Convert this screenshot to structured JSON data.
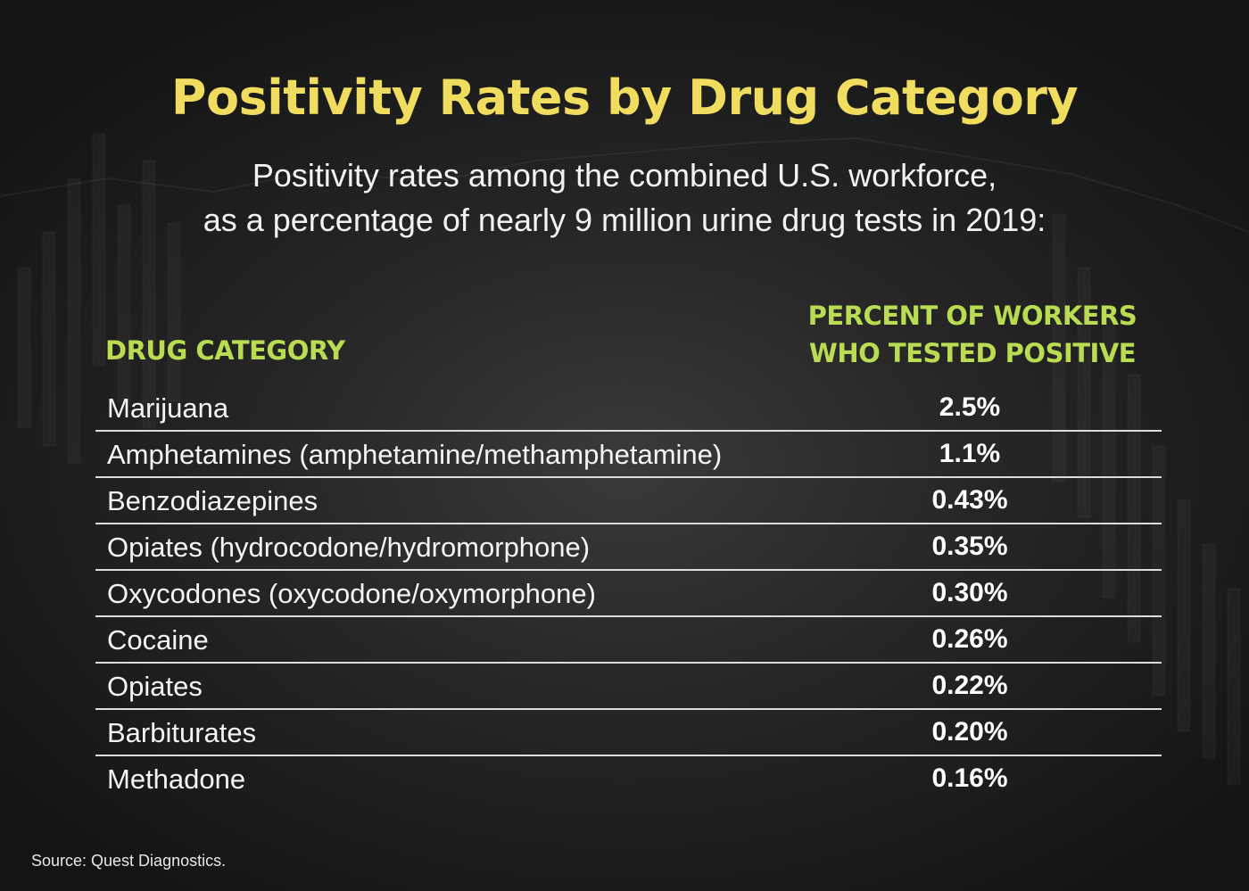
{
  "title": "Positivity Rates by Drug Category",
  "subtitle": {
    "line1": "Positivity rates among the combined U.S. workforce,",
    "line2": "as a percentage of nearly 9 million urine drug tests in 2019:"
  },
  "table": {
    "header_category": "DRUG CATEGORY",
    "header_percent_line1": "PERCENT OF WORKERS",
    "header_percent_line2": "WHO TESTED POSITIVE",
    "rows": [
      {
        "category": "Marijuana",
        "percent": "2.5%"
      },
      {
        "category": "Amphetamines (amphetamine/methamphetamine)",
        "percent": "1.1%"
      },
      {
        "category": "Benzodiazepines",
        "percent": "0.43%"
      },
      {
        "category": "Opiates (hydrocodone/hydromorphone)",
        "percent": "0.35%"
      },
      {
        "category": "Oxycodones (oxycodone/oxymorphone)",
        "percent": "0.30%"
      },
      {
        "category": "Cocaine",
        "percent": "0.26%"
      },
      {
        "category": "Opiates",
        "percent": "0.22%"
      },
      {
        "category": "Barbiturates",
        "percent": "0.20%"
      },
      {
        "category": "Methadone",
        "percent": "0.16%"
      }
    ]
  },
  "source": "Source: Quest Diagnostics.",
  "colors": {
    "title": "#f0dc5e",
    "header": "#b9dc52",
    "text": "#f4f4f4",
    "divider": "#dcdcdc",
    "background": "#1c1c1c"
  }
}
